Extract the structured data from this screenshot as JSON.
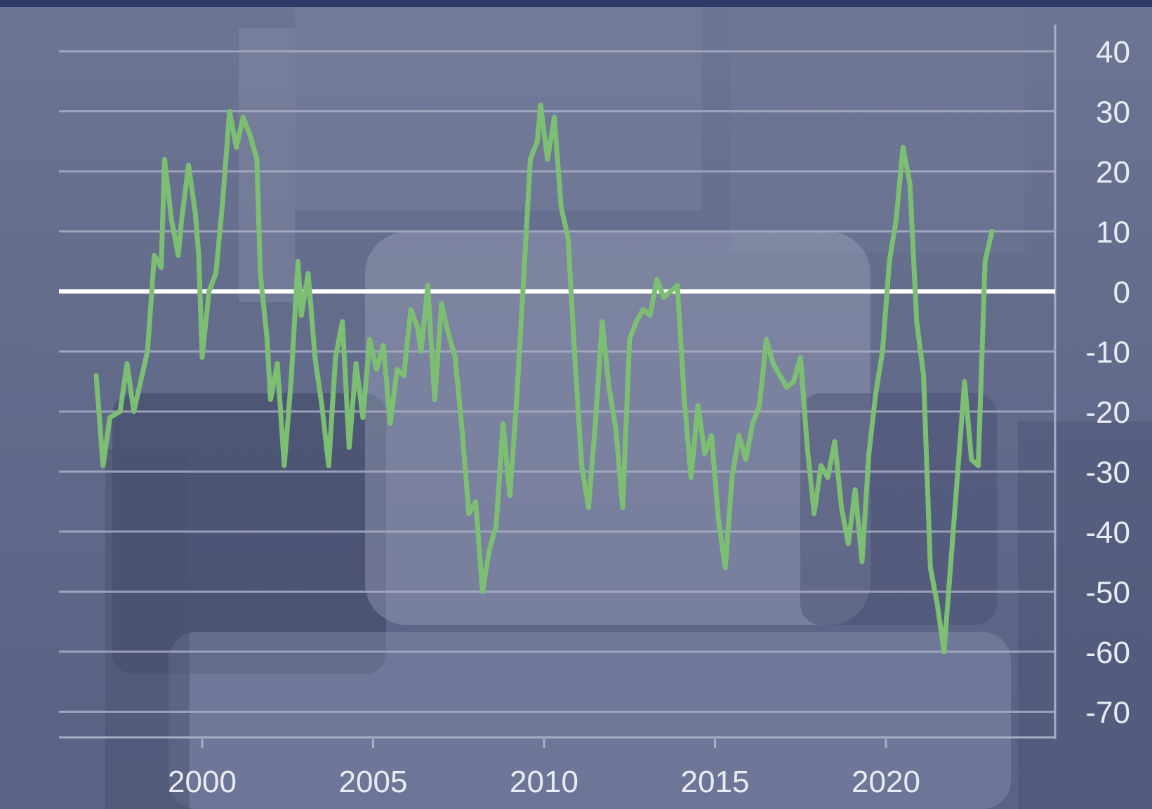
{
  "colors": {
    "line": "#7dbf72",
    "zero_line": "#ffffff",
    "gridline": "#a9aec4",
    "text": "#e9ecf4",
    "frame": "#2f3a66"
  },
  "chart_data": {
    "type": "line",
    "title": "",
    "xlabel": "",
    "ylabel": "",
    "xlim": [
      1996.8,
      2024.4
    ],
    "ylim": [
      -73,
      45
    ],
    "x_ticks": [
      2000,
      2005,
      2010,
      2015,
      2020
    ],
    "y_ticks": [
      40,
      30,
      20,
      10,
      0,
      -10,
      -20,
      -30,
      -40,
      -50,
      -60,
      -70
    ],
    "x_tick_labels": [
      "2000",
      "2005",
      "2010",
      "2015",
      "2020"
    ],
    "y_tick_labels": [
      "40",
      "30",
      "20",
      "10",
      "0",
      "-10",
      "-20",
      "-30",
      "-40",
      "-50",
      "-60",
      "-70"
    ],
    "reference_line": 0,
    "grid": true,
    "series": [
      {
        "points": [
          [
            1996.9,
            -14
          ],
          [
            1997.1,
            -29
          ],
          [
            1997.3,
            -21
          ],
          [
            1997.6,
            -20
          ],
          [
            1997.8,
            -12
          ],
          [
            1998.0,
            -20
          ],
          [
            1998.2,
            -15
          ],
          [
            1998.4,
            -10
          ],
          [
            1998.6,
            6
          ],
          [
            1998.8,
            4
          ],
          [
            1998.9,
            22
          ],
          [
            1999.1,
            12
          ],
          [
            1999.3,
            6
          ],
          [
            1999.4,
            12
          ],
          [
            1999.6,
            21
          ],
          [
            1999.8,
            13
          ],
          [
            1999.9,
            6
          ],
          [
            2000.0,
            -11
          ],
          [
            2000.2,
            0
          ],
          [
            2000.4,
            3
          ],
          [
            2000.6,
            15
          ],
          [
            2000.8,
            30
          ],
          [
            2001.0,
            24
          ],
          [
            2001.2,
            29
          ],
          [
            2001.4,
            26
          ],
          [
            2001.6,
            22
          ],
          [
            2001.7,
            3
          ],
          [
            2001.9,
            -8
          ],
          [
            2002.0,
            -18
          ],
          [
            2002.2,
            -12
          ],
          [
            2002.4,
            -29
          ],
          [
            2002.6,
            -15
          ],
          [
            2002.8,
            5
          ],
          [
            2002.9,
            -4
          ],
          [
            2003.1,
            3
          ],
          [
            2003.3,
            -11
          ],
          [
            2003.5,
            -19
          ],
          [
            2003.7,
            -29
          ],
          [
            2003.9,
            -11
          ],
          [
            2004.1,
            -5
          ],
          [
            2004.3,
            -26
          ],
          [
            2004.5,
            -12
          ],
          [
            2004.7,
            -21
          ],
          [
            2004.9,
            -8
          ],
          [
            2005.1,
            -13
          ],
          [
            2005.3,
            -9
          ],
          [
            2005.5,
            -22
          ],
          [
            2005.7,
            -13
          ],
          [
            2005.9,
            -14
          ],
          [
            2006.1,
            -3
          ],
          [
            2006.3,
            -6
          ],
          [
            2006.4,
            -10
          ],
          [
            2006.6,
            1
          ],
          [
            2006.8,
            -18
          ],
          [
            2007.0,
            -2
          ],
          [
            2007.2,
            -7
          ],
          [
            2007.4,
            -11
          ],
          [
            2007.6,
            -23
          ],
          [
            2007.8,
            -37
          ],
          [
            2008.0,
            -35
          ],
          [
            2008.2,
            -50
          ],
          [
            2008.4,
            -43
          ],
          [
            2008.6,
            -39
          ],
          [
            2008.8,
            -22
          ],
          [
            2009.0,
            -34
          ],
          [
            2009.2,
            -18
          ],
          [
            2009.4,
            2
          ],
          [
            2009.6,
            22
          ],
          [
            2009.8,
            25
          ],
          [
            2009.9,
            31
          ],
          [
            2010.1,
            22
          ],
          [
            2010.3,
            29
          ],
          [
            2010.5,
            14
          ],
          [
            2010.7,
            9
          ],
          [
            2010.9,
            -11
          ],
          [
            2011.1,
            -29
          ],
          [
            2011.3,
            -36
          ],
          [
            2011.5,
            -22
          ],
          [
            2011.7,
            -5
          ],
          [
            2011.9,
            -16
          ],
          [
            2012.1,
            -23
          ],
          [
            2012.3,
            -36
          ],
          [
            2012.5,
            -8
          ],
          [
            2012.7,
            -5
          ],
          [
            2012.9,
            -3
          ],
          [
            2013.1,
            -4
          ],
          [
            2013.3,
            2
          ],
          [
            2013.5,
            -1
          ],
          [
            2013.7,
            0
          ],
          [
            2013.9,
            1
          ],
          [
            2014.1,
            -18
          ],
          [
            2014.3,
            -31
          ],
          [
            2014.5,
            -19
          ],
          [
            2014.7,
            -27
          ],
          [
            2014.9,
            -24
          ],
          [
            2015.1,
            -38
          ],
          [
            2015.3,
            -46
          ],
          [
            2015.5,
            -31
          ],
          [
            2015.7,
            -24
          ],
          [
            2015.9,
            -28
          ],
          [
            2016.1,
            -22
          ],
          [
            2016.3,
            -19
          ],
          [
            2016.5,
            -8
          ],
          [
            2016.7,
            -12
          ],
          [
            2016.9,
            -14
          ],
          [
            2017.1,
            -16
          ],
          [
            2017.3,
            -15
          ],
          [
            2017.5,
            -11
          ],
          [
            2017.7,
            -26
          ],
          [
            2017.9,
            -37
          ],
          [
            2018.1,
            -29
          ],
          [
            2018.3,
            -31
          ],
          [
            2018.5,
            -25
          ],
          [
            2018.7,
            -36
          ],
          [
            2018.9,
            -42
          ],
          [
            2019.1,
            -33
          ],
          [
            2019.3,
            -45
          ],
          [
            2019.5,
            -27
          ],
          [
            2019.7,
            -17
          ],
          [
            2019.9,
            -10
          ],
          [
            2020.1,
            5
          ],
          [
            2020.3,
            12
          ],
          [
            2020.5,
            24
          ],
          [
            2020.7,
            18
          ],
          [
            2020.9,
            -5
          ],
          [
            2021.1,
            -14
          ],
          [
            2021.3,
            -46
          ],
          [
            2021.5,
            -52
          ],
          [
            2021.7,
            -60
          ],
          [
            2021.9,
            -45
          ],
          [
            2022.1,
            -30
          ],
          [
            2022.3,
            -15
          ],
          [
            2022.5,
            -28
          ],
          [
            2022.7,
            -29
          ],
          [
            2022.9,
            5
          ],
          [
            2023.1,
            10
          ]
        ]
      }
    ]
  }
}
